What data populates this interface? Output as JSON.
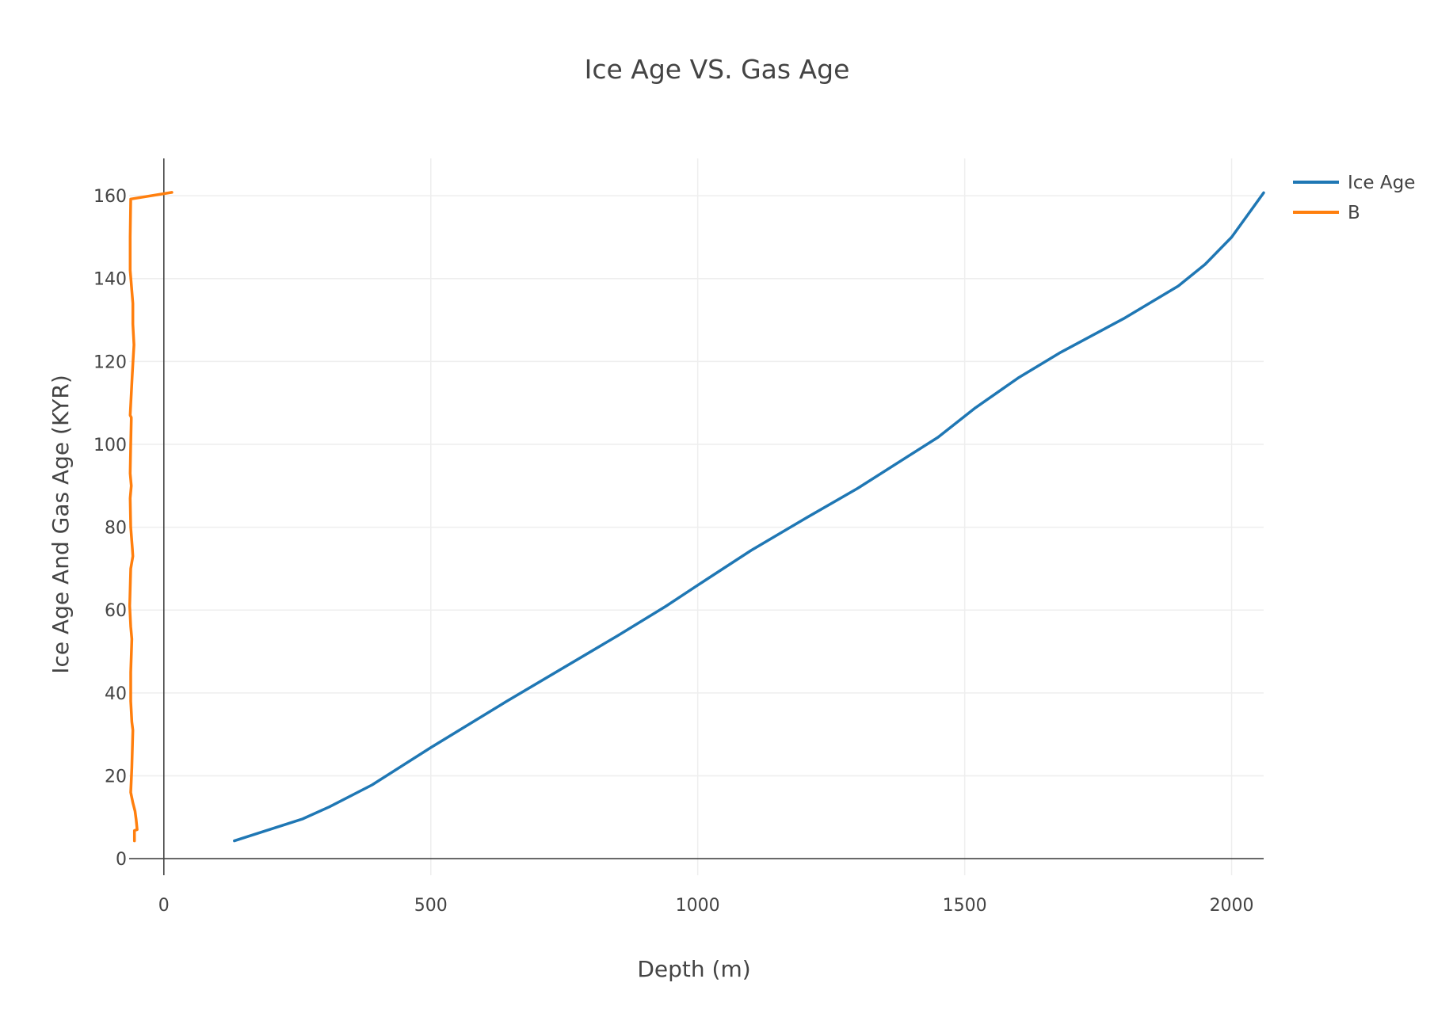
{
  "chart_data": {
    "type": "line",
    "title": "Ice Age VS. Gas Age",
    "xlabel": "Depth (m)",
    "ylabel": "Ice Age And Gas Age (KYR)",
    "xlim": [
      -65,
      2060
    ],
    "ylim": [
      -4,
      169
    ],
    "x_ticks": [
      0,
      500,
      1000,
      1500,
      2000
    ],
    "x_tick_labels": [
      "0",
      "500",
      "1000",
      "1500",
      "2000"
    ],
    "y_ticks": [
      0,
      20,
      40,
      60,
      80,
      100,
      120,
      140,
      160
    ],
    "y_tick_labels": [
      "0",
      "20",
      "40",
      "60",
      "80",
      "100",
      "120",
      "140",
      "160"
    ],
    "grid": true,
    "legend_position": "top-right",
    "series": [
      {
        "name": "Ice Age",
        "color": "#1f77b4",
        "x": [
          132,
          260,
          310,
          390,
          500,
          640,
          850,
          940,
          1000,
          1100,
          1200,
          1300,
          1450,
          1520,
          1600,
          1680,
          1800,
          1900,
          1950,
          2000,
          2060
        ],
        "y": [
          4.3,
          9.6,
          12.5,
          17.8,
          26.8,
          37.8,
          53.8,
          60.9,
          66.0,
          74.4,
          82.0,
          89.4,
          101.7,
          108.8,
          116.0,
          122.2,
          130.5,
          138.2,
          143.4,
          150.0,
          160.7
        ]
      },
      {
        "name": "B",
        "color": "#ff7f0e",
        "x": [
          -55,
          -55,
          -50,
          -52,
          -54,
          -58,
          -62,
          -60,
          -58,
          -60,
          -62,
          -62,
          -60,
          -62,
          -64,
          -62,
          -58,
          -59,
          -62,
          -63,
          -61,
          -63,
          -62,
          -61,
          -61,
          -63,
          -59,
          -56,
          -58,
          -58,
          -63,
          -63,
          -63,
          -62,
          15
        ],
        "y": [
          4.3,
          6.8,
          7.0,
          9.5,
          11.5,
          13.5,
          16.0,
          22.0,
          31.0,
          33.0,
          38.0,
          45.0,
          53.0,
          56.0,
          61.0,
          70.0,
          73.0,
          75.0,
          80.0,
          87.0,
          90.0,
          93.0,
          100.0,
          106.0,
          106.5,
          107.0,
          117.0,
          124.0,
          129.0,
          134.0,
          142.0,
          144.0,
          150.0,
          159.2,
          160.8
        ]
      }
    ]
  }
}
